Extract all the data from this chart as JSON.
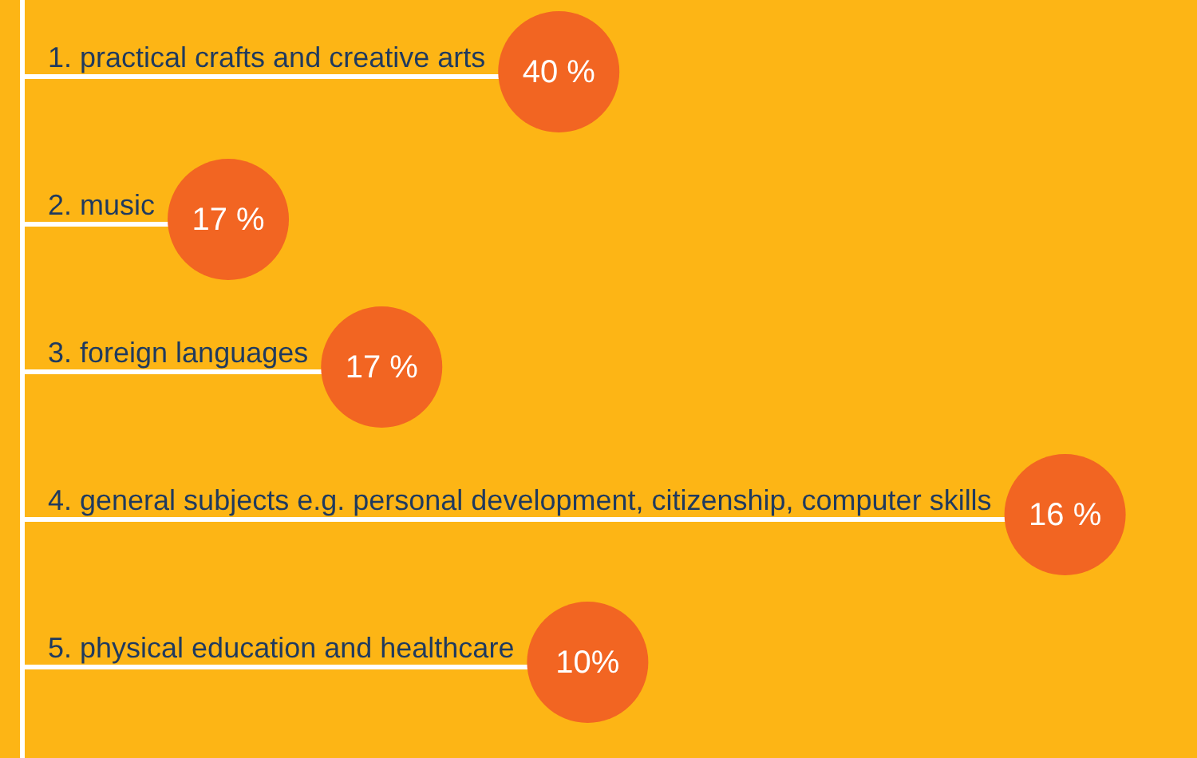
{
  "chart_data": {
    "type": "other",
    "categories": [
      "1. practical crafts and creative arts",
      "2. music",
      "3. foreign languages",
      "4. general subjects e.g. personal development, citizenship, computer skills",
      "5. physical education and healthcare"
    ],
    "values": [
      40,
      17,
      17,
      16,
      10
    ],
    "value_labels": [
      "40 %",
      "17 %",
      "17 %",
      "16 %",
      "10%"
    ],
    "color": "#f26522"
  }
}
